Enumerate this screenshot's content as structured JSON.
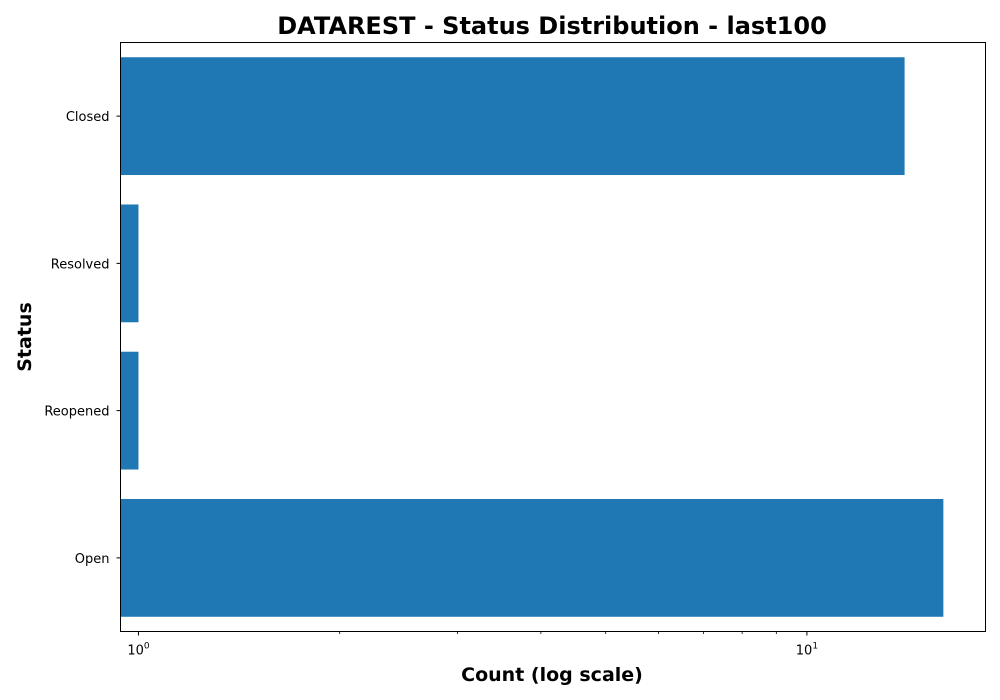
{
  "chart_data": {
    "type": "bar",
    "orientation": "horizontal",
    "title": "DATAREST - Status Distribution - last100",
    "xlabel": "Count (log scale)",
    "ylabel": "Status",
    "x_scale": "log",
    "xlim": [
      0.94,
      18.5
    ],
    "x_tick_labels": [
      "10^0",
      "10^1"
    ],
    "categories": [
      "Closed",
      "Resolved",
      "Reopened",
      "Open"
    ],
    "values": [
      14,
      1,
      1,
      16
    ],
    "bar_color": "#1f77b4",
    "grid": false,
    "legend": "none"
  }
}
